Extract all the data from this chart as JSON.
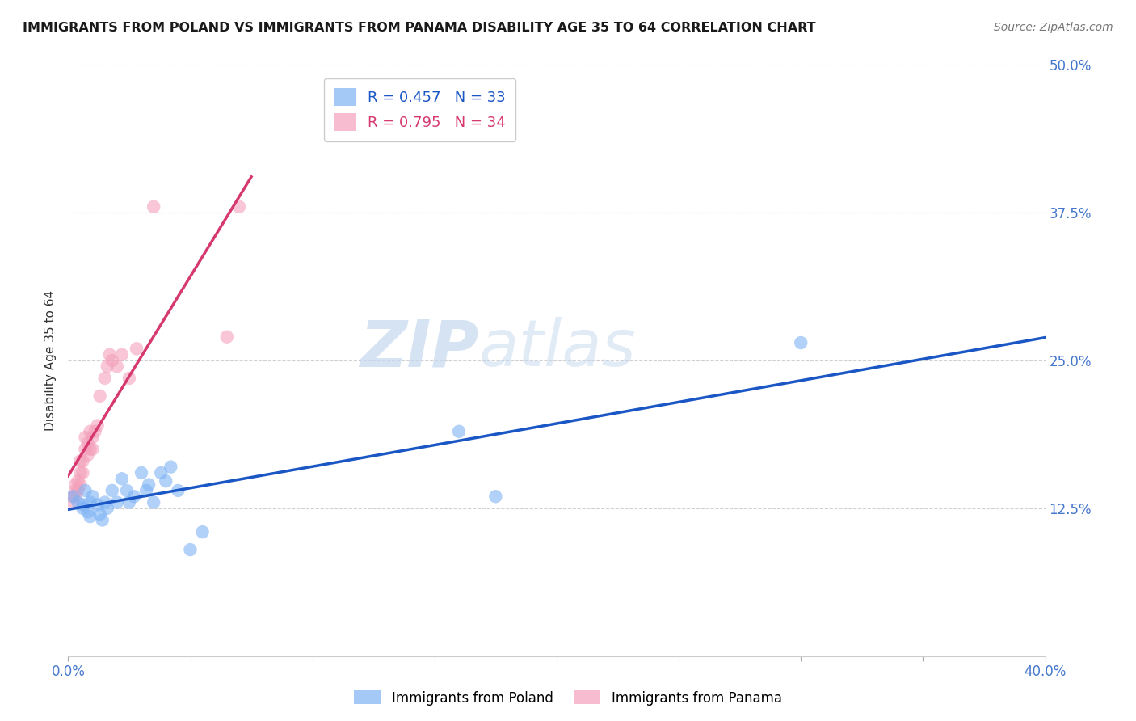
{
  "title": "IMMIGRANTS FROM POLAND VS IMMIGRANTS FROM PANAMA DISABILITY AGE 35 TO 64 CORRELATION CHART",
  "source": "Source: ZipAtlas.com",
  "ylabel": "Disability Age 35 to 64",
  "xlim": [
    0.0,
    0.4
  ],
  "ylim": [
    0.0,
    0.5
  ],
  "xticks": [
    0.0,
    0.05,
    0.1,
    0.15,
    0.2,
    0.25,
    0.3,
    0.35,
    0.4
  ],
  "yticks": [
    0.0,
    0.125,
    0.25,
    0.375,
    0.5
  ],
  "poland_R": 0.457,
  "poland_N": 33,
  "panama_R": 0.795,
  "panama_N": 34,
  "poland_color": "#7eb3f5",
  "panama_color": "#f4a0bb",
  "poland_line_color": "#1a56c4",
  "panama_line_color": "#d63870",
  "poland_x": [
    0.002,
    0.004,
    0.006,
    0.006,
    0.007,
    0.008,
    0.009,
    0.009,
    0.01,
    0.012,
    0.013,
    0.014,
    0.015,
    0.016,
    0.018,
    0.02,
    0.022,
    0.024,
    0.025,
    0.027,
    0.03,
    0.032,
    0.033,
    0.035,
    0.038,
    0.04,
    0.042,
    0.045,
    0.05,
    0.055,
    0.16,
    0.175,
    0.3
  ],
  "poland_y": [
    0.135,
    0.13,
    0.125,
    0.128,
    0.14,
    0.122,
    0.118,
    0.13,
    0.135,
    0.128,
    0.12,
    0.115,
    0.13,
    0.125,
    0.14,
    0.13,
    0.15,
    0.14,
    0.13,
    0.135,
    0.155,
    0.14,
    0.145,
    0.13,
    0.155,
    0.148,
    0.16,
    0.14,
    0.09,
    0.105,
    0.19,
    0.135,
    0.265
  ],
  "panama_x": [
    0.002,
    0.002,
    0.003,
    0.003,
    0.003,
    0.004,
    0.004,
    0.005,
    0.005,
    0.005,
    0.006,
    0.006,
    0.007,
    0.007,
    0.008,
    0.008,
    0.009,
    0.009,
    0.01,
    0.01,
    0.011,
    0.012,
    0.013,
    0.015,
    0.016,
    0.017,
    0.018,
    0.02,
    0.022,
    0.025,
    0.028,
    0.035,
    0.065,
    0.07
  ],
  "panama_y": [
    0.13,
    0.135,
    0.135,
    0.14,
    0.145,
    0.14,
    0.148,
    0.145,
    0.155,
    0.165,
    0.155,
    0.165,
    0.175,
    0.185,
    0.17,
    0.18,
    0.175,
    0.19,
    0.175,
    0.185,
    0.19,
    0.195,
    0.22,
    0.235,
    0.245,
    0.255,
    0.25,
    0.245,
    0.255,
    0.235,
    0.26,
    0.38,
    0.27,
    0.38
  ],
  "watermark_zip": "ZIP",
  "watermark_atlas": "atlas",
  "background_color": "#ffffff",
  "grid_color": "#cccccc"
}
